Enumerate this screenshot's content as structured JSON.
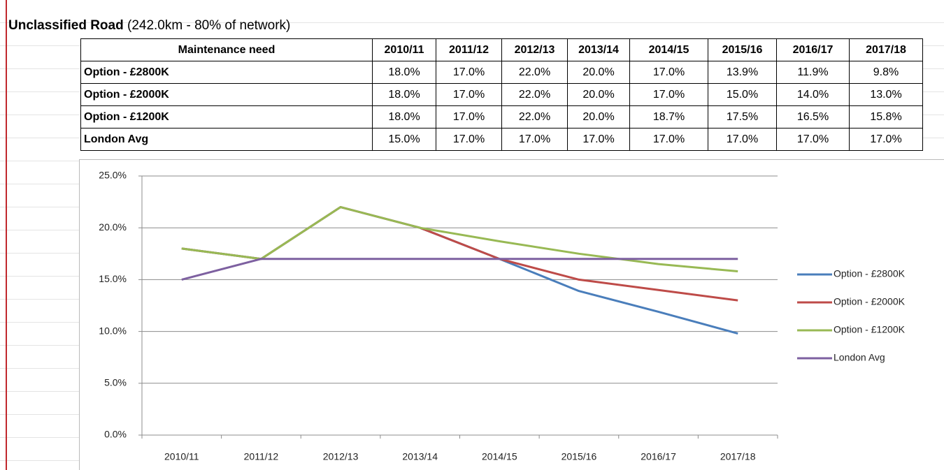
{
  "title": {
    "name": "Unclassified Road",
    "detail": "(242.0km - 80% of network)"
  },
  "table": {
    "header": [
      "Maintenance need",
      "2010/11",
      "2011/12",
      "2012/13",
      "2013/14",
      "2014/15",
      "2015/16",
      "2016/17",
      "2017/18"
    ],
    "rows": [
      [
        "Option - £2800K",
        "18.0%",
        "17.0%",
        "22.0%",
        "20.0%",
        "17.0%",
        "13.9%",
        "11.9%",
        "9.8%"
      ],
      [
        "Option - £2000K",
        "18.0%",
        "17.0%",
        "22.0%",
        "20.0%",
        "17.0%",
        "15.0%",
        "14.0%",
        "13.0%"
      ],
      [
        "Option - £1200K",
        "18.0%",
        "17.0%",
        "22.0%",
        "20.0%",
        "18.7%",
        "17.5%",
        "16.5%",
        "15.8%"
      ],
      [
        "London Avg",
        "15.0%",
        "17.0%",
        "17.0%",
        "17.0%",
        "17.0%",
        "17.0%",
        "17.0%",
        "17.0%"
      ]
    ]
  },
  "chart_data": {
    "type": "line",
    "categories": [
      "2010/11",
      "2011/12",
      "2012/13",
      "2013/14",
      "2014/15",
      "2015/16",
      "2016/17",
      "2017/18"
    ],
    "series": [
      {
        "name": "Option - £2800K",
        "color": "#4a7ebb",
        "values": [
          18.0,
          17.0,
          22.0,
          20.0,
          17.0,
          13.9,
          11.9,
          9.8
        ]
      },
      {
        "name": "Option - £2000K",
        "color": "#be4b48",
        "values": [
          18.0,
          17.0,
          22.0,
          20.0,
          17.0,
          15.0,
          14.0,
          13.0
        ]
      },
      {
        "name": "Option - £1200K",
        "color": "#98b954",
        "values": [
          18.0,
          17.0,
          22.0,
          20.0,
          18.7,
          17.5,
          16.5,
          15.8
        ]
      },
      {
        "name": "London Avg",
        "color": "#7d60a0",
        "values": [
          15.0,
          17.0,
          17.0,
          17.0,
          17.0,
          17.0,
          17.0,
          17.0
        ]
      }
    ],
    "ylim": [
      0,
      25
    ],
    "yticks": [
      {
        "value": 0,
        "label": "0.0%"
      },
      {
        "value": 5,
        "label": "5.0%"
      },
      {
        "value": 10,
        "label": "10.0%"
      },
      {
        "value": 15,
        "label": "15.0%"
      },
      {
        "value": 20,
        "label": "20.0%"
      },
      {
        "value": 25,
        "label": "25.0%"
      }
    ],
    "grid": true,
    "legend": "right"
  }
}
